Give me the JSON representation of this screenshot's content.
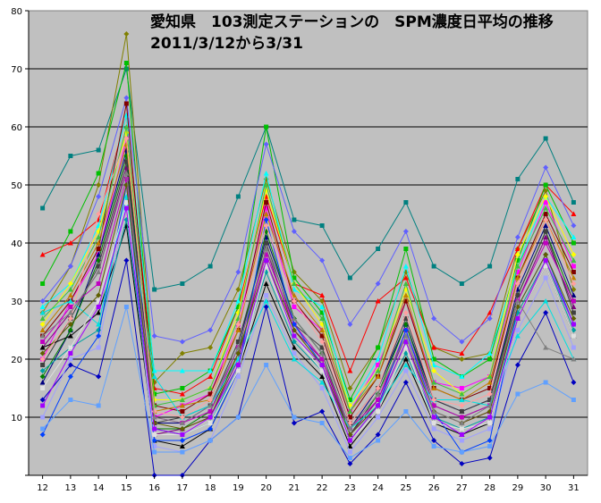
{
  "chart_data": {
    "type": "line",
    "title": "愛知県　103測定ステーションの　SPM濃度日平均の推移",
    "subtitle": "2011/3/12から3/31",
    "xlabel": "",
    "ylabel": "",
    "x": [
      "12",
      "13",
      "14",
      "15",
      "16",
      "17",
      "18",
      "19",
      "20",
      "21",
      "22",
      "23",
      "24",
      "25",
      "26",
      "27",
      "28",
      "29",
      "30",
      "31"
    ],
    "ylim": [
      0,
      80
    ],
    "yticks": [
      "",
      "10",
      "20",
      "30",
      "40",
      "50",
      "60",
      "70",
      "80"
    ],
    "grid": true,
    "legend": "none",
    "plot_background": "#c0c0c0",
    "series": [
      {
        "color": "#008080",
        "values": [
          46,
          55,
          56,
          70,
          32,
          33,
          36,
          48,
          60,
          44,
          43,
          34,
          39,
          47,
          36,
          33,
          36,
          51,
          58,
          47
        ]
      },
      {
        "color": "#808000",
        "values": [
          28,
          36,
          50,
          76,
          16,
          21,
          22,
          32,
          51,
          35,
          30,
          15,
          22,
          35,
          22,
          20,
          21,
          39,
          49,
          32
        ]
      },
      {
        "color": "#ff0000",
        "values": [
          38,
          40,
          44,
          62,
          15,
          14,
          17,
          29,
          48,
          33,
          31,
          18,
          30,
          34,
          22,
          21,
          28,
          39,
          50,
          45
        ]
      },
      {
        "color": "#00c000",
        "values": [
          33,
          42,
          52,
          71,
          14,
          15,
          18,
          29,
          60,
          34,
          28,
          13,
          22,
          39,
          20,
          17,
          20,
          37,
          50,
          40
        ]
      },
      {
        "color": "#6060ff",
        "values": [
          30,
          36,
          48,
          65,
          24,
          23,
          25,
          35,
          57,
          42,
          37,
          26,
          33,
          42,
          27,
          23,
          27,
          41,
          53,
          43
        ]
      },
      {
        "color": "#00ffff",
        "values": [
          29,
          33,
          43,
          62,
          18,
          18,
          18,
          30,
          52,
          32,
          29,
          12,
          20,
          36,
          19,
          17,
          21,
          36,
          48,
          41
        ]
      },
      {
        "color": "#ff00ff",
        "values": [
          20,
          30,
          38,
          58,
          10,
          12,
          14,
          26,
          46,
          29,
          25,
          11,
          19,
          30,
          16,
          15,
          17,
          35,
          47,
          36
        ]
      },
      {
        "color": "#ffff00",
        "values": [
          26,
          33,
          42,
          59,
          13,
          13,
          15,
          28,
          49,
          33,
          26,
          12,
          18,
          32,
          18,
          14,
          17,
          38,
          48,
          38
        ]
      },
      {
        "color": "#000080",
        "values": [
          16,
          25,
          38,
          56,
          9,
          9,
          12,
          22,
          41,
          27,
          21,
          8,
          15,
          26,
          13,
          11,
          13,
          32,
          43,
          31
        ]
      },
      {
        "color": "#800000",
        "values": [
          24,
          30,
          39,
          64,
          12,
          11,
          14,
          25,
          47,
          30,
          24,
          10,
          17,
          30,
          15,
          13,
          15,
          34,
          45,
          35
        ]
      },
      {
        "color": "#008000",
        "values": [
          17,
          25,
          37,
          55,
          8,
          8,
          11,
          21,
          42,
          27,
          21,
          7,
          14,
          26,
          12,
          10,
          12,
          31,
          42,
          30
        ]
      },
      {
        "color": "#800080",
        "values": [
          22,
          28,
          35,
          53,
          7,
          8,
          10,
          20,
          39,
          25,
          20,
          7,
          13,
          24,
          11,
          9,
          11,
          30,
          41,
          29
        ]
      },
      {
        "color": "#404040",
        "values": [
          19,
          27,
          36,
          54,
          9,
          10,
          12,
          23,
          40,
          26,
          22,
          9,
          15,
          27,
          13,
          11,
          13,
          31,
          42,
          28
        ]
      },
      {
        "color": "#0000c0",
        "values": [
          13,
          19,
          17,
          37,
          0,
          0,
          6,
          10,
          29,
          9,
          11,
          2,
          7,
          16,
          6,
          2,
          3,
          19,
          28,
          16
        ]
      },
      {
        "color": "#000000",
        "values": [
          22,
          24,
          28,
          43,
          6,
          5,
          8,
          18,
          33,
          22,
          17,
          5,
          11,
          20,
          9,
          7,
          9,
          27,
          36,
          24
        ]
      },
      {
        "color": "#a0a0ff",
        "values": [
          10,
          20,
          22,
          47,
          5,
          4,
          6,
          17,
          31,
          21,
          15,
          4,
          10,
          18,
          8,
          6,
          8,
          25,
          34,
          22
        ]
      },
      {
        "color": "#00a0a0",
        "values": [
          18,
          22,
          25,
          44,
          8,
          7,
          9,
          19,
          35,
          23,
          18,
          6,
          12,
          21,
          10,
          8,
          10,
          28,
          37,
          25
        ]
      },
      {
        "color": "#c08000",
        "values": [
          25,
          31,
          40,
          57,
          11,
          12,
          13,
          25,
          45,
          31,
          25,
          11,
          17,
          31,
          15,
          13,
          16,
          34,
          44,
          34
        ]
      },
      {
        "color": "#c000c0",
        "values": [
          23,
          29,
          33,
          51,
          10,
          9,
          11,
          22,
          38,
          26,
          20,
          8,
          13,
          25,
          12,
          10,
          12,
          30,
          40,
          30
        ]
      },
      {
        "color": "#0040ff",
        "values": [
          7,
          17,
          24,
          50,
          6,
          6,
          8,
          18,
          44,
          26,
          19,
          7,
          12,
          25,
          11,
          4,
          6,
          29,
          38,
          26
        ]
      },
      {
        "color": "#00e0e0",
        "values": [
          28,
          30,
          26,
          48,
          17,
          10,
          12,
          20,
          30,
          20,
          16,
          8,
          12,
          19,
          13,
          13,
          12,
          24,
          30,
          20
        ]
      },
      {
        "color": "#e0e0e0",
        "values": [
          15,
          22,
          30,
          47,
          7,
          7,
          9,
          18,
          36,
          24,
          18,
          6,
          11,
          22,
          9,
          8,
          9,
          27,
          36,
          24
        ]
      },
      {
        "color": "#606000",
        "values": [
          21,
          26,
          31,
          50,
          9,
          8,
          10,
          21,
          37,
          25,
          19,
          7,
          12,
          23,
          11,
          9,
          11,
          29,
          38,
          27
        ]
      },
      {
        "color": "#40c040",
        "values": [
          27,
          32,
          41,
          60,
          12,
          13,
          15,
          27,
          50,
          33,
          27,
          11,
          18,
          33,
          16,
          14,
          17,
          36,
          46,
          37
        ]
      },
      {
        "color": "#a000ff",
        "values": [
          12,
          21,
          29,
          46,
          8,
          7,
          10,
          19,
          37,
          24,
          19,
          6,
          12,
          23,
          10,
          7,
          10,
          27,
          37,
          26
        ]
      },
      {
        "color": "#ffa0a0",
        "values": [
          20,
          27,
          45,
          58,
          11,
          10,
          13,
          26,
          43,
          30,
          23,
          9,
          15,
          28,
          13,
          12,
          14,
          33,
          44,
          33
        ]
      },
      {
        "color": "#808080",
        "values": [
          24,
          28,
          35,
          52,
          10,
          9,
          12,
          22,
          39,
          27,
          21,
          8,
          14,
          24,
          11,
          9,
          12,
          30,
          22,
          20
        ]
      },
      {
        "color": "#60a0ff",
        "values": [
          8,
          13,
          12,
          29,
          4,
          4,
          6,
          10,
          19,
          10,
          9,
          3,
          6,
          11,
          5,
          4,
          5,
          14,
          16,
          13
        ]
      }
    ]
  }
}
